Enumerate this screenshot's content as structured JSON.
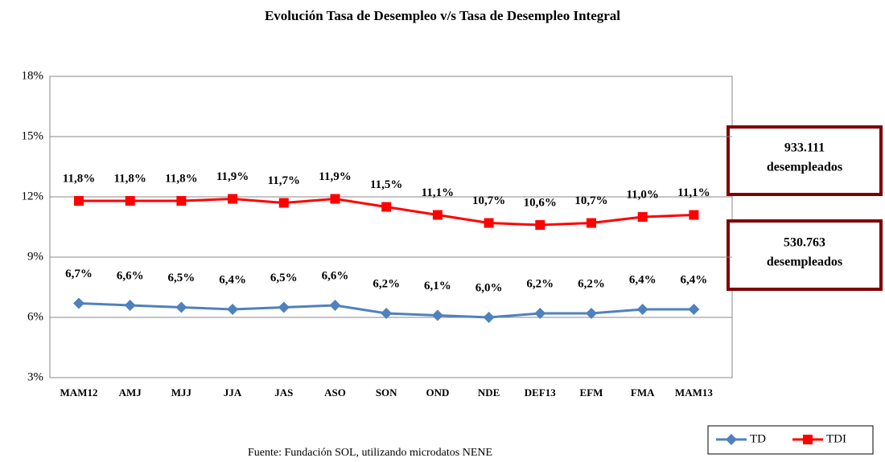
{
  "chart_data": {
    "type": "line",
    "title": "Evolución Tasa de Desempleo v/s Tasa de Desempleo Integral",
    "categories": [
      "MAM12",
      "AMJ",
      "MJJ",
      "JJA",
      "JAS",
      "ASO",
      "SON",
      "OND",
      "NDE",
      "DEF13",
      "EFM",
      "FMA",
      "MAM13"
    ],
    "series": [
      {
        "name": "TD",
        "color": "#4f81bd",
        "marker": "diamond",
        "values": [
          6.7,
          6.6,
          6.5,
          6.4,
          6.5,
          6.6,
          6.2,
          6.1,
          6.0,
          6.2,
          6.2,
          6.4,
          6.4
        ],
        "value_labels": [
          "6,7%",
          "6,6%",
          "6,5%",
          "6,4%",
          "6,5%",
          "6,6%",
          "6,2%",
          "6,1%",
          "6,0%",
          "6,2%",
          "6,2%",
          "6,4%",
          "6,4%"
        ]
      },
      {
        "name": "TDI",
        "color": "#ff0000",
        "marker": "square",
        "values": [
          11.8,
          11.8,
          11.8,
          11.9,
          11.7,
          11.9,
          11.5,
          11.1,
          10.7,
          10.6,
          10.7,
          11.0,
          11.1
        ],
        "value_labels": [
          "11,8%",
          "11,8%",
          "11,8%",
          "11,9%",
          "11,7%",
          "11,9%",
          "11,5%",
          "11,1%",
          "10,7%",
          "10,6%",
          "10,7%",
          "11,0%",
          "11,1%"
        ]
      }
    ],
    "ylim": [
      3,
      18
    ],
    "yticks": [
      {
        "value": 3,
        "label": "3%"
      },
      {
        "value": 6,
        "label": "6%"
      },
      {
        "value": 9,
        "label": "9%"
      },
      {
        "value": 12,
        "label": "12%"
      },
      {
        "value": 15,
        "label": "15%"
      },
      {
        "value": 18,
        "label": "18%"
      }
    ],
    "grid": true,
    "legend": "bottom-right",
    "annotations": [
      [
        "933.111",
        "desempleados"
      ],
      [
        "530.763",
        "desempleados"
      ]
    ],
    "source": "Fuente: Fundación SOL, utilizando microdatos NENE"
  }
}
